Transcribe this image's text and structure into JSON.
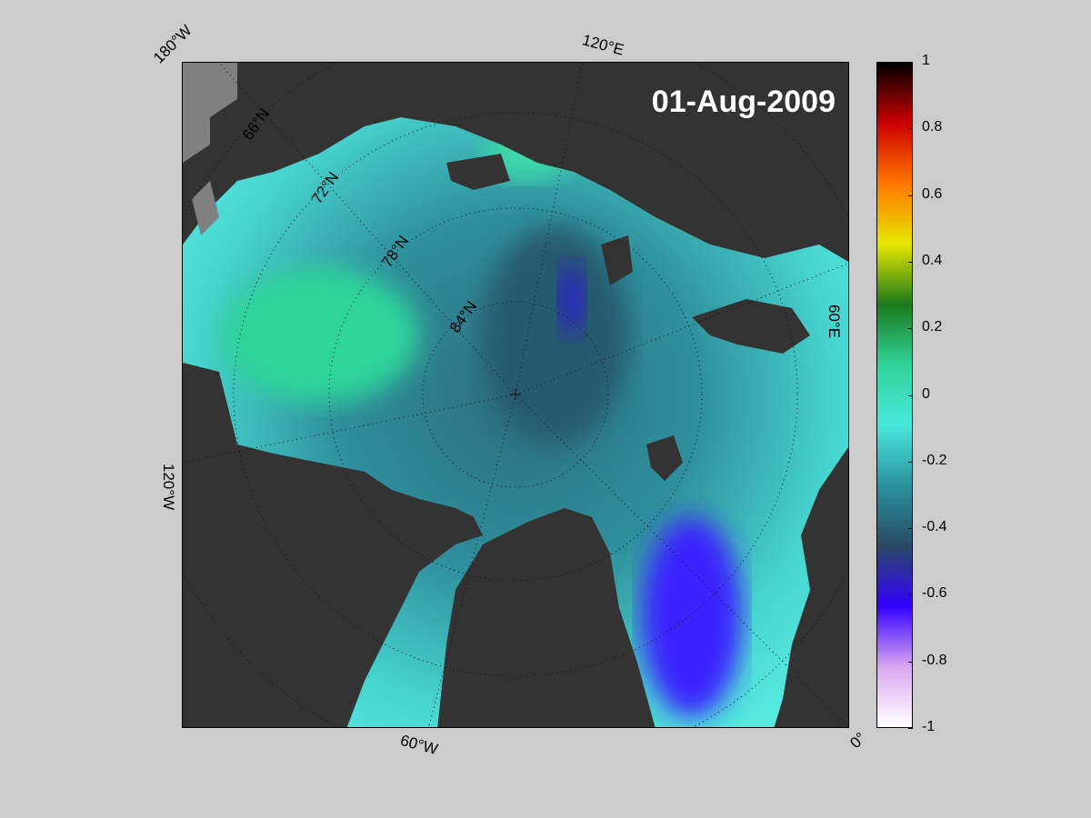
{
  "map": {
    "date": "01-Aug-2009",
    "longitude_labels": [
      "180°W",
      "120°E",
      "60°E",
      "0°",
      "60°W",
      "120°W"
    ],
    "latitude_labels": [
      "66°N",
      "72°N",
      "78°N",
      "84°N"
    ]
  },
  "colorbar": {
    "ticks": [
      "1",
      "0.8",
      "0.6",
      "0.4",
      "0.2",
      "0",
      "-0.2",
      "-0.4",
      "-0.6",
      "-0.8",
      "-1"
    ],
    "range": [
      -1,
      1
    ],
    "colors": [
      "#000000",
      "#cc0000",
      "#ff7700",
      "#e6e600",
      "#1c7a1c",
      "#30d39a",
      "#49e6dc",
      "#2a93a0",
      "#2a4b66",
      "#3300ff",
      "#d9a6f2",
      "#ffffff"
    ]
  }
}
